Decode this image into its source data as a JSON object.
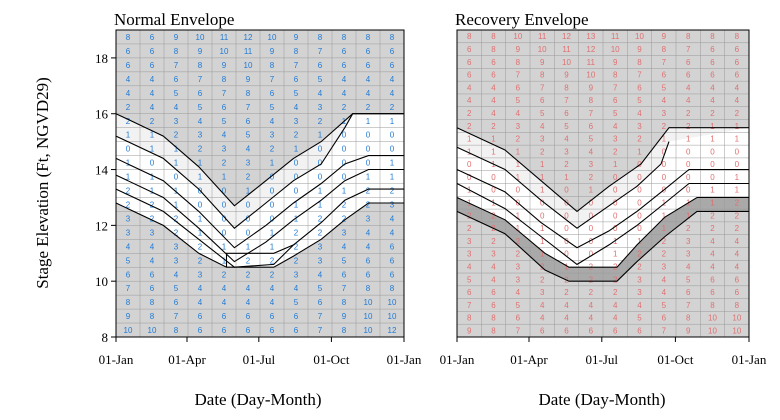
{
  "colors": {
    "grid_cell": "#d3d3d3",
    "band_light": "#f2f2f2",
    "band_white": "#ffffff",
    "band_dark": "#a9a9a9",
    "digit_left": "#1e7ad6",
    "digit_right": "#e07070",
    "line": "#000000"
  },
  "chart_data": [
    {
      "type": "table",
      "title": "Normal Envelope",
      "xlabel": "Date (Day-Month)",
      "ylabel": "Stage Elevation (Ft, NGVD29)",
      "xticks": [
        "01-Jan",
        "01-Apr",
        "01-Jul",
        "01-Oct",
        "01-Jan"
      ],
      "yticks": [
        8,
        10,
        12,
        14,
        16,
        18
      ],
      "ylim": [
        8,
        19
      ],
      "digit_color": "blue",
      "cell_rows": [
        [
          8,
          6,
          9,
          10,
          11,
          12,
          10,
          9,
          8,
          8,
          8,
          8
        ],
        [
          6,
          6,
          8,
          9,
          10,
          11,
          9,
          8,
          7,
          6,
          6,
          6
        ],
        [
          6,
          6,
          7,
          8,
          9,
          10,
          8,
          7,
          6,
          6,
          6,
          6
        ],
        [
          4,
          4,
          6,
          7,
          8,
          9,
          7,
          6,
          5,
          4,
          4,
          4
        ],
        [
          4,
          4,
          5,
          6,
          7,
          8,
          6,
          5,
          4,
          4,
          4,
          4
        ],
        [
          2,
          4,
          4,
          5,
          6,
          7,
          5,
          4,
          3,
          2,
          2,
          2
        ],
        [
          2,
          2,
          3,
          4,
          5,
          6,
          4,
          3,
          2,
          1,
          1,
          1
        ],
        [
          1,
          1,
          2,
          3,
          4,
          5,
          3,
          2,
          1,
          0,
          0,
          0
        ],
        [
          0,
          1,
          1,
          2,
          3,
          4,
          2,
          1,
          0,
          0,
          0,
          0
        ],
        [
          1,
          0,
          1,
          1,
          2,
          3,
          1,
          0,
          0,
          0,
          0,
          1
        ],
        [
          1,
          1,
          0,
          1,
          1,
          2,
          0,
          0,
          0,
          0,
          1,
          1
        ],
        [
          2,
          1,
          1,
          0,
          0,
          1,
          0,
          0,
          1,
          1,
          2,
          2
        ],
        [
          2,
          2,
          1,
          0,
          0,
          0,
          0,
          1,
          1,
          2,
          2,
          3
        ],
        [
          3,
          2,
          2,
          1,
          0,
          0,
          0,
          1,
          2,
          2,
          3,
          4
        ],
        [
          3,
          3,
          2,
          1,
          0,
          0,
          1,
          2,
          2,
          3,
          4,
          4
        ],
        [
          4,
          4,
          3,
          2,
          1,
          1,
          1,
          2,
          3,
          4,
          4,
          6
        ],
        [
          5,
          4,
          3,
          2,
          1,
          2,
          2,
          2,
          3,
          5,
          6,
          6
        ],
        [
          6,
          6,
          4,
          3,
          2,
          2,
          2,
          3,
          4,
          6,
          6,
          6
        ],
        [
          7,
          6,
          5,
          4,
          4,
          4,
          4,
          4,
          5,
          7,
          8,
          8
        ],
        [
          8,
          8,
          6,
          4,
          4,
          4,
          4,
          5,
          6,
          8,
          10,
          10
        ],
        [
          9,
          8,
          7,
          6,
          6,
          6,
          6,
          6,
          7,
          9,
          10,
          10
        ],
        [
          10,
          10,
          8,
          6,
          6,
          6,
          6,
          6,
          7,
          8,
          10,
          12
        ]
      ],
      "envelope_lines": [
        {
          "name": "",
          "points": [
            [
              0,
              16
            ],
            [
              60,
              15.2
            ],
            [
              105,
              14.1
            ],
            [
              150,
              12.7
            ],
            [
              190,
              13.6
            ],
            [
              225,
              14.4
            ],
            [
              260,
              15.0
            ],
            [
              300,
              16
            ],
            [
              365,
              16
            ]
          ]
        },
        {
          "name": "",
          "points": [
            [
              0,
              15.2
            ],
            [
              60,
              14.4
            ],
            [
              105,
              13.3
            ],
            [
              150,
              11.9
            ],
            [
              190,
              12.8
            ],
            [
              225,
              13.6
            ],
            [
              260,
              14.2
            ],
            [
              290,
              15.5
            ],
            [
              300,
              16
            ],
            [
              365,
              16
            ]
          ]
        },
        {
          "name": "",
          "points": [
            [
              0,
              14.4
            ],
            [
              60,
              13.6
            ],
            [
              105,
              12.5
            ],
            [
              150,
              11.2
            ],
            [
              190,
              12.0
            ],
            [
              225,
              12.8
            ],
            [
              260,
              13.5
            ],
            [
              290,
              14.2
            ],
            [
              320,
              14.5
            ],
            [
              365,
              14.5
            ]
          ]
        },
        {
          "name": "",
          "points": [
            [
              0,
              13.8
            ],
            [
              60,
              13.0
            ],
            [
              105,
              11.9
            ],
            [
              150,
              10.7
            ],
            [
              190,
              11.4
            ],
            [
              225,
              12.2
            ],
            [
              260,
              12.9
            ],
            [
              290,
              13.6
            ],
            [
              320,
              14.0
            ],
            [
              365,
              14.0
            ]
          ]
        },
        {
          "name": "",
          "points": [
            [
              0,
              13.3
            ],
            [
              60,
              12.5
            ],
            [
              105,
              11.5
            ],
            [
              150,
              10.5
            ],
            [
              200,
              10.6
            ],
            [
              225,
              11.3
            ],
            [
              260,
              12.1
            ],
            [
              290,
              12.9
            ],
            [
              320,
              13.3
            ],
            [
              365,
              13.3
            ]
          ]
        },
        {
          "name": "",
          "points": [
            [
              0,
              12.8
            ],
            [
              60,
              12.0
            ],
            [
              105,
              11.0
            ],
            [
              140,
              10.5
            ],
            [
              200,
              10.5
            ],
            [
              225,
              10.9
            ],
            [
              260,
              11.5
            ],
            [
              290,
              12.2
            ],
            [
              320,
              12.8
            ],
            [
              365,
              12.8
            ]
          ]
        },
        {
          "name": "",
          "points": [
            [
              140,
              10.5
            ],
            [
              140,
              11.0
            ],
            [
              200,
              11.0
            ],
            [
              225,
              11.3
            ]
          ]
        }
      ]
    },
    {
      "type": "table",
      "title": "Recovery Envelope",
      "xlabel": "Date (Day-Month)",
      "ylabel": "",
      "xticks": [
        "01-Jan",
        "01-Apr",
        "01-Jul",
        "01-Oct",
        "01-Jan"
      ],
      "yticks": [
        8,
        10,
        12,
        14,
        16,
        18
      ],
      "ylim": [
        8,
        19
      ],
      "digit_color": "red",
      "cell_rows": [
        [
          8,
          8,
          10,
          11,
          12,
          13,
          11,
          10,
          9,
          8,
          8,
          8
        ],
        [
          6,
          8,
          9,
          10,
          11,
          12,
          10,
          9,
          8,
          7,
          6,
          6
        ],
        [
          6,
          6,
          8,
          9,
          10,
          11,
          9,
          8,
          7,
          6,
          6,
          6
        ],
        [
          6,
          6,
          7,
          8,
          9,
          10,
          8,
          7,
          6,
          6,
          6,
          6
        ],
        [
          4,
          4,
          6,
          7,
          8,
          9,
          7,
          6,
          5,
          4,
          4,
          4
        ],
        [
          4,
          4,
          5,
          6,
          7,
          8,
          6,
          5,
          4,
          4,
          4,
          4
        ],
        [
          2,
          4,
          4,
          5,
          6,
          7,
          5,
          4,
          3,
          2,
          2,
          2
        ],
        [
          2,
          2,
          3,
          4,
          5,
          6,
          4,
          3,
          2,
          2,
          1,
          1
        ],
        [
          1,
          1,
          2,
          3,
          4,
          5,
          3,
          2,
          1,
          1,
          1,
          1
        ],
        [
          1,
          1,
          1,
          2,
          3,
          4,
          2,
          1,
          0,
          0,
          0,
          0
        ],
        [
          0,
          1,
          1,
          1,
          2,
          3,
          1,
          0,
          0,
          0,
          0,
          0
        ],
        [
          0,
          0,
          1,
          1,
          1,
          2,
          0,
          0,
          0,
          0,
          0,
          1
        ],
        [
          1,
          0,
          0,
          1,
          0,
          1,
          0,
          0,
          0,
          0,
          1,
          1
        ],
        [
          1,
          1,
          0,
          0,
          0,
          0,
          0,
          0,
          1,
          1,
          1,
          2
        ],
        [
          2,
          2,
          1,
          0,
          0,
          0,
          0,
          0,
          1,
          1,
          2,
          2
        ],
        [
          2,
          2,
          1,
          1,
          0,
          0,
          0,
          0,
          1,
          2,
          2,
          2
        ],
        [
          3,
          2,
          2,
          1,
          0,
          0,
          1,
          1,
          2,
          3,
          4,
          4
        ],
        [
          3,
          3,
          2,
          1,
          0,
          0,
          1,
          2,
          2,
          3,
          4,
          4
        ],
        [
          4,
          4,
          3,
          2,
          1,
          2,
          2,
          2,
          3,
          4,
          4,
          4
        ],
        [
          5,
          4,
          3,
          2,
          2,
          2,
          2,
          3,
          4,
          5,
          6,
          6
        ],
        [
          6,
          6,
          4,
          3,
          2,
          2,
          2,
          3,
          4,
          6,
          6,
          6
        ],
        [
          7,
          6,
          5,
          4,
          4,
          4,
          4,
          4,
          5,
          7,
          8,
          8
        ],
        [
          8,
          8,
          6,
          4,
          4,
          4,
          4,
          5,
          6,
          8,
          10,
          10
        ],
        [
          9,
          8,
          7,
          6,
          6,
          6,
          6,
          6,
          7,
          9,
          10,
          10
        ]
      ],
      "envelope_lines": [
        {
          "name": "",
          "points": [
            [
              0,
              15.5
            ],
            [
              60,
              14.7
            ],
            [
              105,
              13.6
            ],
            [
              150,
              12.5
            ],
            [
              190,
              13.4
            ],
            [
              230,
              14.2
            ],
            [
              265,
              15.5
            ],
            [
              365,
              15.5
            ]
          ]
        },
        {
          "name": "",
          "points": [
            [
              0,
              14.8
            ],
            [
              60,
              14.0
            ],
            [
              105,
              12.9
            ],
            [
              150,
              11.9
            ],
            [
              190,
              12.7
            ],
            [
              225,
              13.4
            ],
            [
              255,
              14.2
            ],
            [
              265,
              15.0
            ]
          ]
        },
        {
          "name": "",
          "points": [
            [
              0,
              14.0
            ],
            [
              60,
              13.2
            ],
            [
              105,
              12.1
            ],
            [
              150,
              11.2
            ],
            [
              190,
              11.8
            ],
            [
              225,
              12.5
            ],
            [
              260,
              13.3
            ],
            [
              290,
              14.0
            ],
            [
              365,
              14.0
            ]
          ]
        },
        {
          "name": "",
          "points": [
            [
              0,
              13.5
            ],
            [
              60,
              12.6
            ],
            [
              105,
              11.6
            ],
            [
              150,
              10.6
            ],
            [
              190,
              11.3
            ],
            [
              225,
              12.0
            ],
            [
              260,
              12.8
            ],
            [
              290,
              13.5
            ],
            [
              365,
              13.5
            ]
          ]
        },
        {
          "name": "",
          "points": [
            [
              0,
              13.0
            ],
            [
              60,
              12.2
            ],
            [
              110,
              11.0
            ],
            [
              140,
              10.5
            ],
            [
              200,
              10.5
            ],
            [
              225,
              11.3
            ],
            [
              260,
              12.3
            ],
            [
              300,
              13.0
            ],
            [
              365,
              13.0
            ]
          ]
        },
        {
          "name": "",
          "points": [
            [
              0,
              12.5
            ],
            [
              60,
              11.7
            ],
            [
              110,
              10.4
            ],
            [
              140,
              10.0
            ],
            [
              200,
              10.0
            ],
            [
              225,
              10.7
            ],
            [
              260,
              11.6
            ],
            [
              300,
              12.5
            ],
            [
              365,
              12.5
            ]
          ]
        }
      ]
    }
  ]
}
